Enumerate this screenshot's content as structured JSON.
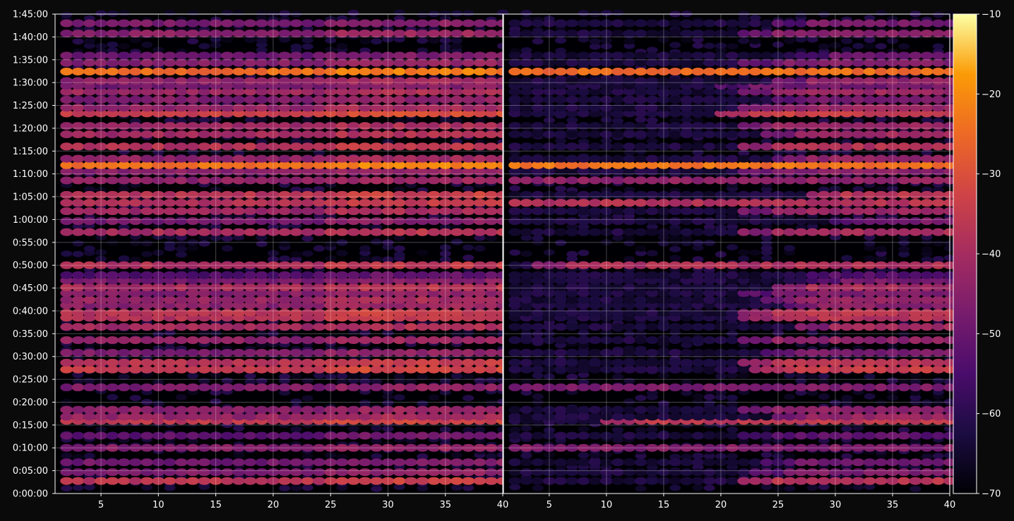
{
  "chart_data": {
    "type": "heatmap",
    "panels": 2,
    "color_scale": {
      "colormap": "inferno",
      "vmin": -70,
      "vmax": -10,
      "ticks": [
        -10,
        -20,
        -30,
        -40,
        -50,
        -60,
        -70
      ],
      "tick_labels": [
        "−10",
        "−20",
        "−30",
        "−40",
        "−50",
        "−60",
        "−70"
      ]
    },
    "y_axis": {
      "unit": "seconds",
      "range": [
        0,
        6300
      ],
      "ticks": [
        0,
        300,
        600,
        900,
        1200,
        1500,
        1800,
        2100,
        2400,
        2700,
        3000,
        3300,
        3600,
        3900,
        4200,
        4500,
        4800,
        5100,
        5400,
        5700,
        6000,
        6300
      ],
      "tick_labels": [
        "0:00:00",
        "0:05:00",
        "0:10:00",
        "0:15:00",
        "0:20:00",
        "0:25:00",
        "0:30:00",
        "0:35:00",
        "0:40:00",
        "0:45:00",
        "0:50:00",
        "0:55:00",
        "1:00:00",
        "1:05:00",
        "1:10:00",
        "1:15:00",
        "1:20:00",
        "1:25:00",
        "1:30:00",
        "1:35:00",
        "1:40:00",
        "1:45:00"
      ]
    },
    "x_axis": {
      "range": [
        1,
        40
      ],
      "ticks": [
        5,
        10,
        15,
        20,
        25,
        30,
        35,
        40
      ],
      "tick_labels": [
        "5",
        "10",
        "15",
        "20",
        "25",
        "30",
        "35",
        "40"
      ]
    },
    "grid": true,
    "band_times_s": [
      165,
      280,
      410,
      600,
      760,
      955,
      1010,
      1100,
      1395,
      1630,
      1720,
      1850,
      2015,
      2190,
      2310,
      2375,
      2475,
      2545,
      2635,
      2710,
      2800,
      2870,
      3000,
      3435,
      3580,
      3710,
      3820,
      3925,
      4115,
      4230,
      4315,
      4400,
      4560,
      4720,
      4830,
      4995,
      5070,
      5175,
      5280,
      5360,
      5420,
      5545,
      5660,
      5755,
      6045,
      6180
    ],
    "band_level_db": [
      -37,
      -47,
      -49,
      -46,
      -52,
      -36,
      -43,
      -45,
      -47,
      -35,
      -37,
      -47,
      -44,
      -41,
      -38,
      -37,
      -45,
      -43,
      -46,
      -40,
      -48,
      -54,
      -39,
      -40,
      -48,
      -42,
      -38,
      -37,
      -44,
      -45,
      -24,
      -44,
      -38,
      -41,
      -42,
      -34,
      -43,
      -47,
      -42,
      -49,
      -44,
      -25,
      -46,
      -50,
      -45,
      -48
    ],
    "band_onset_panel2": [
      22,
      23,
      24,
      1,
      22,
      10,
      25,
      22,
      1,
      23,
      22,
      24,
      22,
      27,
      22,
      22,
      26,
      24,
      22,
      25,
      28,
      25,
      4,
      22,
      30,
      22,
      1,
      28,
      1,
      22,
      1,
      25,
      22,
      24,
      22,
      20,
      22,
      25,
      22,
      20,
      25,
      1,
      22,
      27,
      22,
      25
    ]
  }
}
